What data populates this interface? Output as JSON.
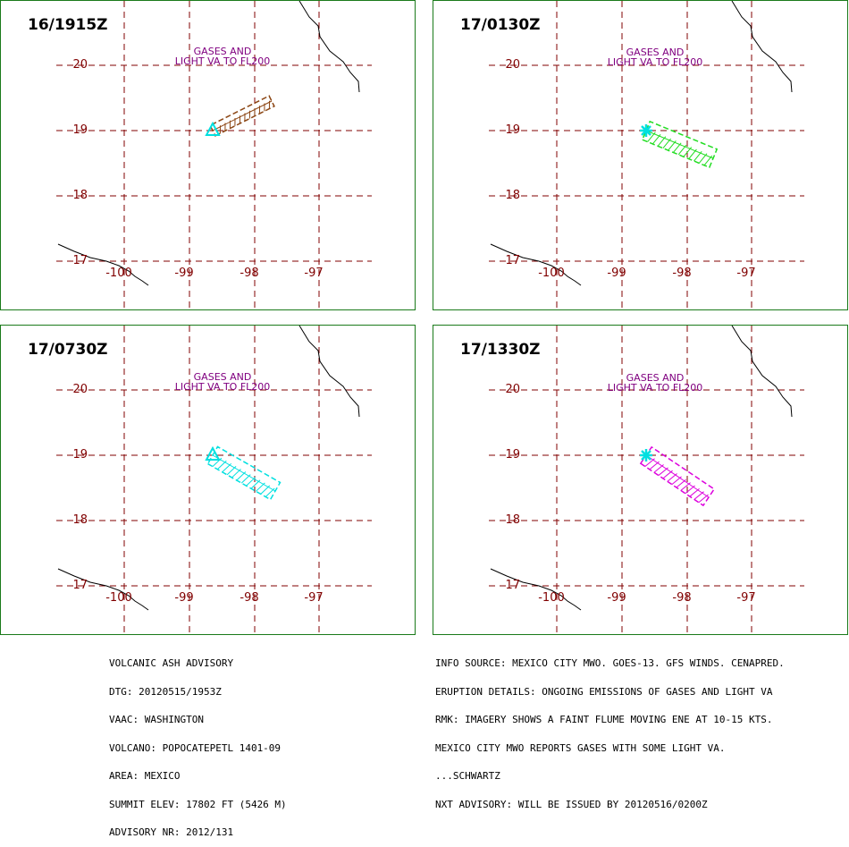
{
  "colors": {
    "frame": "#1a7a1a",
    "grid": "#800000",
    "coast": "#000000",
    "label": "#800080",
    "volcano": "#00e0e0"
  },
  "labels": {
    "lat": [
      "20",
      "19",
      "18",
      "17"
    ],
    "lon": [
      "-100",
      "-99",
      "-98",
      "-97"
    ]
  },
  "panels": [
    {
      "time": "16/1915Z",
      "label_line1": "GASES AND",
      "label_line2": "LIGHT VA TO FL200",
      "plume_color": "#8b4513",
      "plume_direction": "ENE",
      "volcano_icon": "triangle-icon"
    },
    {
      "time": "17/0130Z",
      "label_line1": "GASES AND",
      "label_line2": "LIGHT VA TO FL200",
      "plume_color": "#22dd22",
      "plume_direction": "ESE",
      "volcano_icon": "star-icon"
    },
    {
      "time": "17/0730Z",
      "label_line1": "GASES AND",
      "label_line2": "LIGHT VA TO FL200",
      "plume_color": "#00e0e0",
      "plume_direction": "SE",
      "volcano_icon": "triangle-icon"
    },
    {
      "time": "17/1330Z",
      "label_line1": "GASES AND",
      "label_line2": "LIGHT VA TO FL200",
      "plume_color": "#dd00dd",
      "plume_direction": "SE",
      "volcano_icon": "star-icon"
    }
  ],
  "advisory_left": [
    "VOLCANIC ASH ADVISORY",
    "DTG: 20120515/1953Z",
    "VAAC: WASHINGTON",
    "VOLCANO: POPOCATEPETL 1401-09",
    "AREA: MEXICO",
    "SUMMIT ELEV: 17802 FT (5426 M)",
    "ADVISORY NR: 2012/131"
  ],
  "advisory_right": [
    "INFO SOURCE: MEXICO CITY MWO. GOES-13. GFS WINDS. CENAPRED.",
    "ERUPTION DETAILS: ONGOING EMISSIONS OF GASES AND LIGHT VA",
    "RMK: IMAGERY SHOWS A FAINT FLUME MOVING ENE AT 10-15 KTS.",
    "MEXICO CITY MWO REPORTS GASES WITH SOME LIGHT VA.",
    "...SCHWARTZ",
    "NXT ADVISORY: WILL BE ISSUED BY 20120516/0200Z"
  ]
}
